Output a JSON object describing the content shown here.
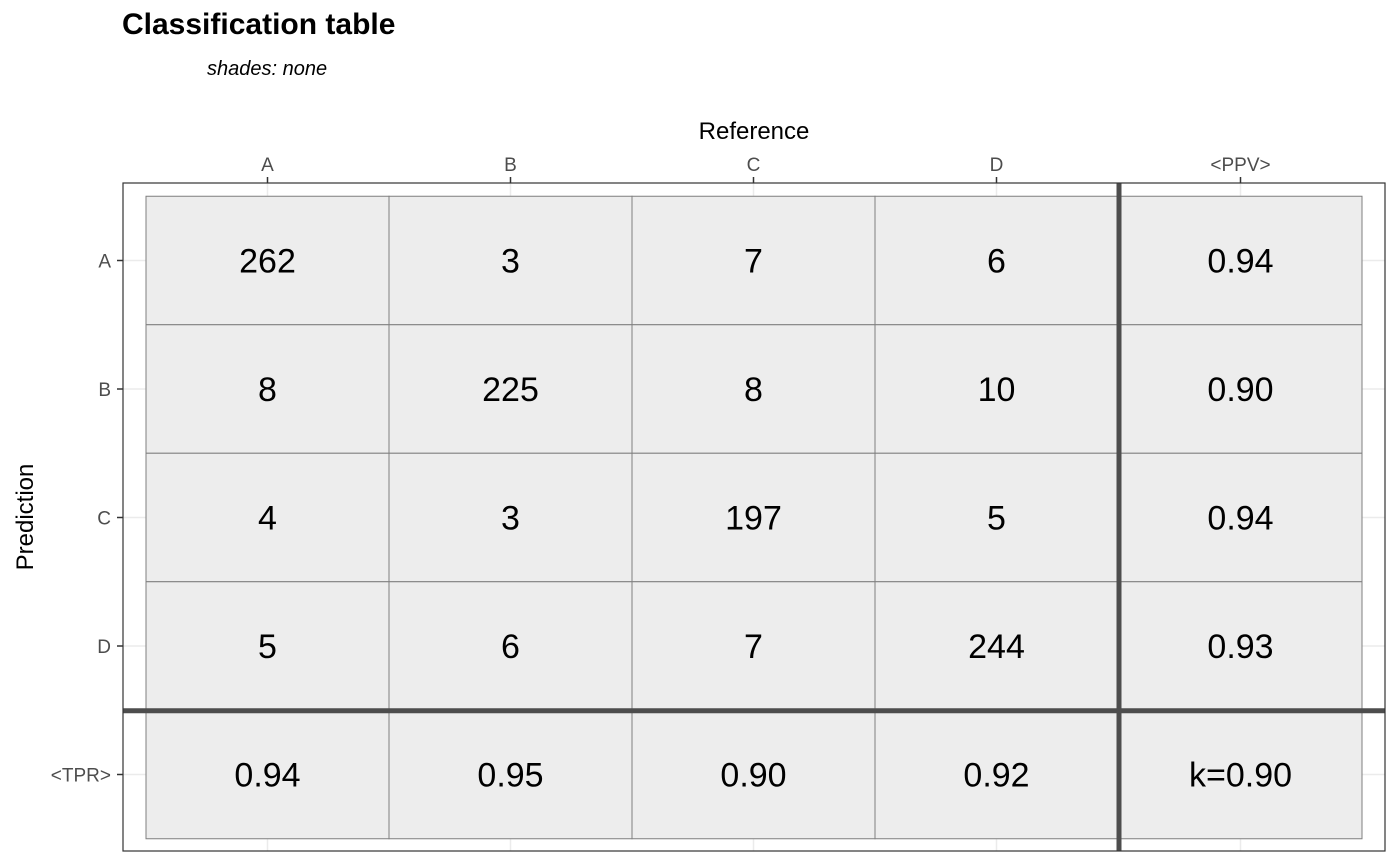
{
  "chart_data": {
    "type": "table",
    "title": "Classification table",
    "subtitle": "shades: none",
    "xlabel": "Reference",
    "ylabel": "Prediction",
    "columns": [
      "A",
      "B",
      "C",
      "D",
      "<PPV>"
    ],
    "rows": [
      "A",
      "B",
      "C",
      "D",
      "<TPR>"
    ],
    "cells": [
      [
        "262",
        "3",
        "7",
        "6",
        "0.94"
      ],
      [
        "8",
        "225",
        "8",
        "10",
        "0.90"
      ],
      [
        "4",
        "3",
        "197",
        "5",
        "0.94"
      ],
      [
        "5",
        "6",
        "7",
        "244",
        "0.93"
      ],
      [
        "0.94",
        "0.95",
        "0.90",
        "0.92",
        "k=0.90"
      ]
    ],
    "colors": {
      "cell_fill": "#ededed",
      "cell_border": "#7f7f7f",
      "separator": "#4d4d4d",
      "grid": "#ebebeb",
      "tick_label": "#4d4d4d"
    }
  }
}
